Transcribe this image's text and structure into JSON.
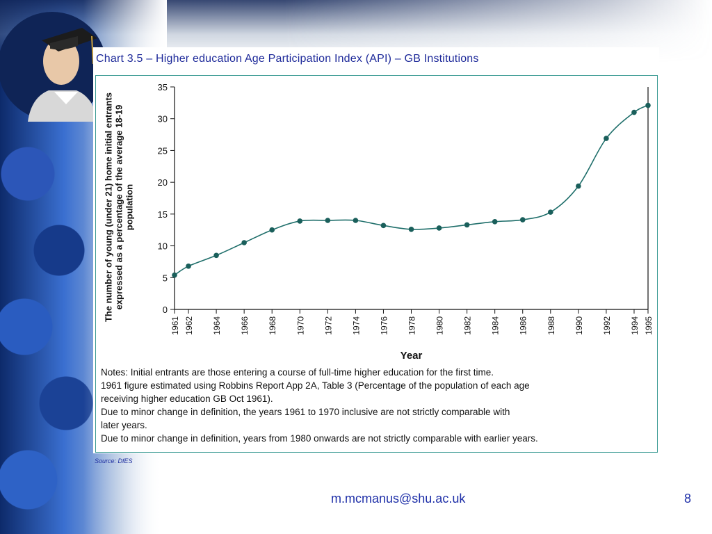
{
  "slide": {
    "email": "m.mcmanus@shu.ac.uk",
    "page_number": "8",
    "source": "Source: DfES"
  },
  "notes": [
    "Notes: Initial entrants are those entering a course of full-time higher education for the first time.",
    "1961 figure estimated using Robbins Report App 2A, Table 3 (Percentage of the population of each age",
    "receiving higher education GB Oct 1961).",
    "Due to minor change in definition, the years 1961 to 1970 inclusive are not strictly comparable with",
    "later years.",
    "Due to minor change in definition, years from 1980 onwards are not strictly comparable with earlier years."
  ],
  "colors": {
    "series": "#1e6e6a",
    "marker": "#1a5f5b",
    "frame": "#3a9a93",
    "title": "#1e2a9a",
    "footer": "#1e2fa8"
  },
  "chart_data": {
    "type": "line",
    "title": "Chart 3.5 – Higher education Age Participation Index (API) – GB Institutions",
    "xlabel": "Year",
    "ylabel": "The number of young (under 21) home initial entrants expressed as a percentage of the average 18-19 population",
    "ylim": [
      0,
      35
    ],
    "yticks": [
      0,
      5,
      10,
      15,
      20,
      25,
      30,
      35
    ],
    "xticks": [
      "1961",
      "1962",
      "1964",
      "1966",
      "1968",
      "1970",
      "1972",
      "1974",
      "1976",
      "1978",
      "1980",
      "1982",
      "1984",
      "1986",
      "1988",
      "1990",
      "1992",
      "1994",
      "1995"
    ],
    "grid": false,
    "series": [
      {
        "x": [
          1961,
          1962,
          1964,
          1966,
          1968,
          1970,
          1972,
          1974,
          1976,
          1978,
          1980,
          1982,
          1984,
          1986,
          1988,
          1990,
          1992,
          1994,
          1995
        ],
        "y": [
          5.4,
          6.8,
          8.5,
          10.5,
          12.5,
          13.9,
          14.0,
          14.0,
          13.2,
          12.6,
          12.8,
          13.3,
          13.8,
          14.1,
          15.3,
          19.4,
          26.9,
          31.0,
          32.1
        ]
      }
    ]
  }
}
